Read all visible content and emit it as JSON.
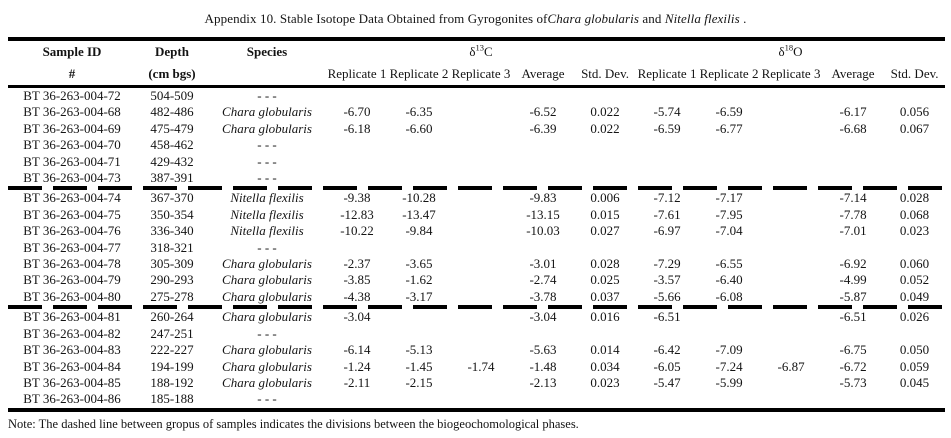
{
  "title": {
    "text_before": "Appendix 10. Stable Isotope Data Obtained from Gyrogonites of",
    "species_1": "Chara globularis",
    "text_middle": " and ",
    "species_2": "Nitella flexilis",
    "text_after": " ."
  },
  "table": {
    "headers": {
      "sample_id_line1": "Sample ID",
      "sample_id_line2": "#",
      "depth_line1": "Depth",
      "depth_line2": "(cm bgs)",
      "species": "Species",
      "c13": {
        "delta": "δ",
        "mass": "13",
        "element": "C"
      },
      "o18": {
        "delta": "δ",
        "mass": "18",
        "element": "O"
      },
      "sub_columns": [
        "Replicate 1",
        "Replicate 2",
        "Replicate 3",
        "Average",
        "Std. Dev."
      ]
    },
    "rows": [
      {
        "sample_id": "BT 36-263-004-72",
        "depth": "504-509",
        "species": "- - -",
        "species_italic": false,
        "c13": [
          "",
          "",
          "",
          "",
          ""
        ],
        "o18": [
          "",
          "",
          "",
          "",
          ""
        ],
        "group_end": false
      },
      {
        "sample_id": "BT 36-263-004-68",
        "depth": "482-486",
        "species": "Chara globularis",
        "species_italic": true,
        "c13": [
          "-6.70",
          "-6.35",
          "",
          "-6.52",
          "0.022"
        ],
        "o18": [
          "-5.74",
          "-6.59",
          "",
          "-6.17",
          "0.056"
        ],
        "group_end": false
      },
      {
        "sample_id": "BT 36-263-004-69",
        "depth": "475-479",
        "species": "Chara globularis",
        "species_italic": true,
        "c13": [
          "-6.18",
          "-6.60",
          "",
          "-6.39",
          "0.022"
        ],
        "o18": [
          "-6.59",
          "-6.77",
          "",
          "-6.68",
          "0.067"
        ],
        "group_end": false
      },
      {
        "sample_id": "BT 36-263-004-70",
        "depth": "458-462",
        "species": "- - -",
        "species_italic": false,
        "c13": [
          "",
          "",
          "",
          "",
          ""
        ],
        "o18": [
          "",
          "",
          "",
          "",
          ""
        ],
        "group_end": false
      },
      {
        "sample_id": "BT 36-263-004-71",
        "depth": "429-432",
        "species": "- - -",
        "species_italic": false,
        "c13": [
          "",
          "",
          "",
          "",
          ""
        ],
        "o18": [
          "",
          "",
          "",
          "",
          ""
        ],
        "group_end": false
      },
      {
        "sample_id": "BT 36-263-004-73",
        "depth": "387-391",
        "species": "- - -",
        "species_italic": false,
        "c13": [
          "",
          "",
          "",
          "",
          ""
        ],
        "o18": [
          "",
          "",
          "",
          "",
          ""
        ],
        "group_end": true
      },
      {
        "sample_id": "BT 36-263-004-74",
        "depth": "367-370",
        "species": "Nitella flexilis",
        "species_italic": true,
        "c13": [
          "-9.38",
          "-10.28",
          "",
          "-9.83",
          "0.006"
        ],
        "o18": [
          "-7.12",
          "-7.17",
          "",
          "-7.14",
          "0.028"
        ],
        "group_end": false
      },
      {
        "sample_id": "BT 36-263-004-75",
        "depth": "350-354",
        "species": "Nitella flexilis",
        "species_italic": true,
        "c13": [
          "-12.83",
          "-13.47",
          "",
          "-13.15",
          "0.015"
        ],
        "o18": [
          "-7.61",
          "-7.95",
          "",
          "-7.78",
          "0.068"
        ],
        "group_end": false
      },
      {
        "sample_id": "BT 36-263-004-76",
        "depth": "336-340",
        "species": "Nitella flexilis",
        "species_italic": true,
        "c13": [
          "-10.22",
          "-9.84",
          "",
          "-10.03",
          "0.027"
        ],
        "o18": [
          "-6.97",
          "-7.04",
          "",
          "-7.01",
          "0.023"
        ],
        "group_end": false
      },
      {
        "sample_id": "BT 36-263-004-77",
        "depth": "318-321",
        "species": "- - -",
        "species_italic": false,
        "c13": [
          "",
          "",
          "",
          "",
          ""
        ],
        "o18": [
          "",
          "",
          "",
          "",
          ""
        ],
        "group_end": false
      },
      {
        "sample_id": "BT 36-263-004-78",
        "depth": "305-309",
        "species": "Chara globularis",
        "species_italic": true,
        "c13": [
          "-2.37",
          "-3.65",
          "",
          "-3.01",
          "0.028"
        ],
        "o18": [
          "-7.29",
          "-6.55",
          "",
          "-6.92",
          "0.060"
        ],
        "group_end": false
      },
      {
        "sample_id": "BT 36-263-004-79",
        "depth": "290-293",
        "species": "Chara globularis",
        "species_italic": true,
        "c13": [
          "-3.85",
          "-1.62",
          "",
          "-2.74",
          "0.025"
        ],
        "o18": [
          "-3.57",
          "-6.40",
          "",
          "-4.99",
          "0.052"
        ],
        "group_end": false
      },
      {
        "sample_id": "BT 36-263-004-80",
        "depth": "275-278",
        "species": "Chara globularis",
        "species_italic": true,
        "c13": [
          "-4.38",
          "-3.17",
          "",
          "-3.78",
          "0.037"
        ],
        "o18": [
          "-5.66",
          "-6.08",
          "",
          "-5.87",
          "0.049"
        ],
        "group_end": true
      },
      {
        "sample_id": "BT 36-263-004-81",
        "depth": "260-264",
        "species": "Chara globularis",
        "species_italic": true,
        "c13": [
          "-3.04",
          "",
          "",
          "-3.04",
          "0.016"
        ],
        "o18": [
          "-6.51",
          "",
          "",
          "-6.51",
          "0.026"
        ],
        "group_end": false
      },
      {
        "sample_id": "BT 36-263-004-82",
        "depth": "247-251",
        "species": "- - -",
        "species_italic": false,
        "c13": [
          "",
          "",
          "",
          "",
          ""
        ],
        "o18": [
          "",
          "",
          "",
          "",
          ""
        ],
        "group_end": false
      },
      {
        "sample_id": "BT 36-263-004-83",
        "depth": "222-227",
        "species": "Chara globularis",
        "species_italic": true,
        "c13": [
          "-6.14",
          "-5.13",
          "",
          "-5.63",
          "0.014"
        ],
        "o18": [
          "-6.42",
          "-7.09",
          "",
          "-6.75",
          "0.050"
        ],
        "group_end": false
      },
      {
        "sample_id": "BT 36-263-004-84",
        "depth": "194-199",
        "species": "Chara globularis",
        "species_italic": true,
        "c13": [
          "-1.24",
          "-1.45",
          "-1.74",
          "-1.48",
          "0.034"
        ],
        "o18": [
          "-6.05",
          "-7.24",
          "-6.87",
          "-6.72",
          "0.059"
        ],
        "group_end": false
      },
      {
        "sample_id": "BT 36-263-004-85",
        "depth": "188-192",
        "species": "Chara globularis",
        "species_italic": true,
        "c13": [
          "-2.11",
          "-2.15",
          "",
          "-2.13",
          "0.023"
        ],
        "o18": [
          "-5.47",
          "-5.99",
          "",
          "-5.73",
          "0.045"
        ],
        "group_end": false
      },
      {
        "sample_id": "BT 36-263-004-86",
        "depth": "185-188",
        "species": "- - -",
        "species_italic": false,
        "c13": [
          "",
          "",
          "",
          "",
          ""
        ],
        "o18": [
          "",
          "",
          "",
          "",
          ""
        ],
        "group_end": false
      }
    ]
  },
  "note": "Note: The dashed line between gropus of samples indicates the divisions between the biogeochomological phases."
}
